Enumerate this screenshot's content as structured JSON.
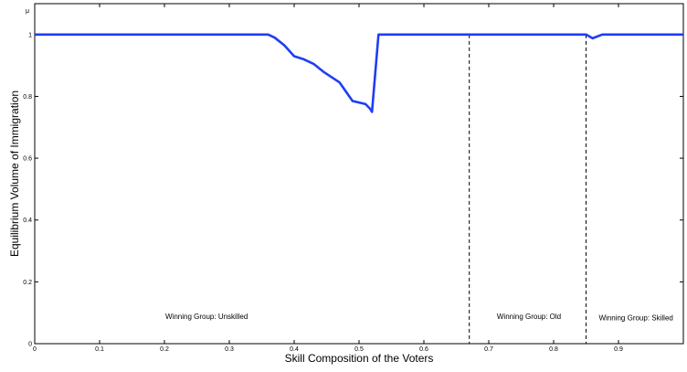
{
  "chart_data": {
    "type": "line",
    "title": "",
    "xlabel": "Skill Composition of the Voters",
    "ylabel": "Equilibrium Volume of Immigration",
    "corner_label": "μ",
    "xlim": [
      0,
      1
    ],
    "ylim": [
      0,
      1.1
    ],
    "x_ticks": [
      0,
      0.1,
      0.2,
      0.3,
      0.4,
      0.5,
      0.6,
      0.7,
      0.8,
      0.9
    ],
    "y_ticks": [
      0,
      0.2,
      0.4,
      0.6,
      0.8,
      1
    ],
    "grid": false,
    "series": [
      {
        "color": "#1f3df5",
        "x": [
          0,
          0.36,
          0.37,
          0.385,
          0.4,
          0.415,
          0.43,
          0.445,
          0.47,
          0.49,
          0.51,
          0.517,
          0.52,
          0.53,
          0.85,
          0.86,
          0.875,
          1.0
        ],
        "y": [
          1,
          1,
          0.99,
          0.965,
          0.93,
          0.92,
          0.905,
          0.88,
          0.845,
          0.785,
          0.775,
          0.76,
          0.75,
          1,
          1,
          0.988,
          1,
          1
        ]
      }
    ],
    "vlines": [
      {
        "x": 0.67,
        "style": "dashed"
      },
      {
        "x": 0.85,
        "style": "dashed"
      }
    ],
    "annotations": [
      {
        "text": "Winning Group: Unskilled",
        "x": 0.265,
        "y": 0.08
      },
      {
        "text": "Winning Group: Old",
        "x": 0.762,
        "y": 0.08
      },
      {
        "text": "Winning Group: Skilled",
        "x": 0.927,
        "y": 0.075
      }
    ]
  }
}
